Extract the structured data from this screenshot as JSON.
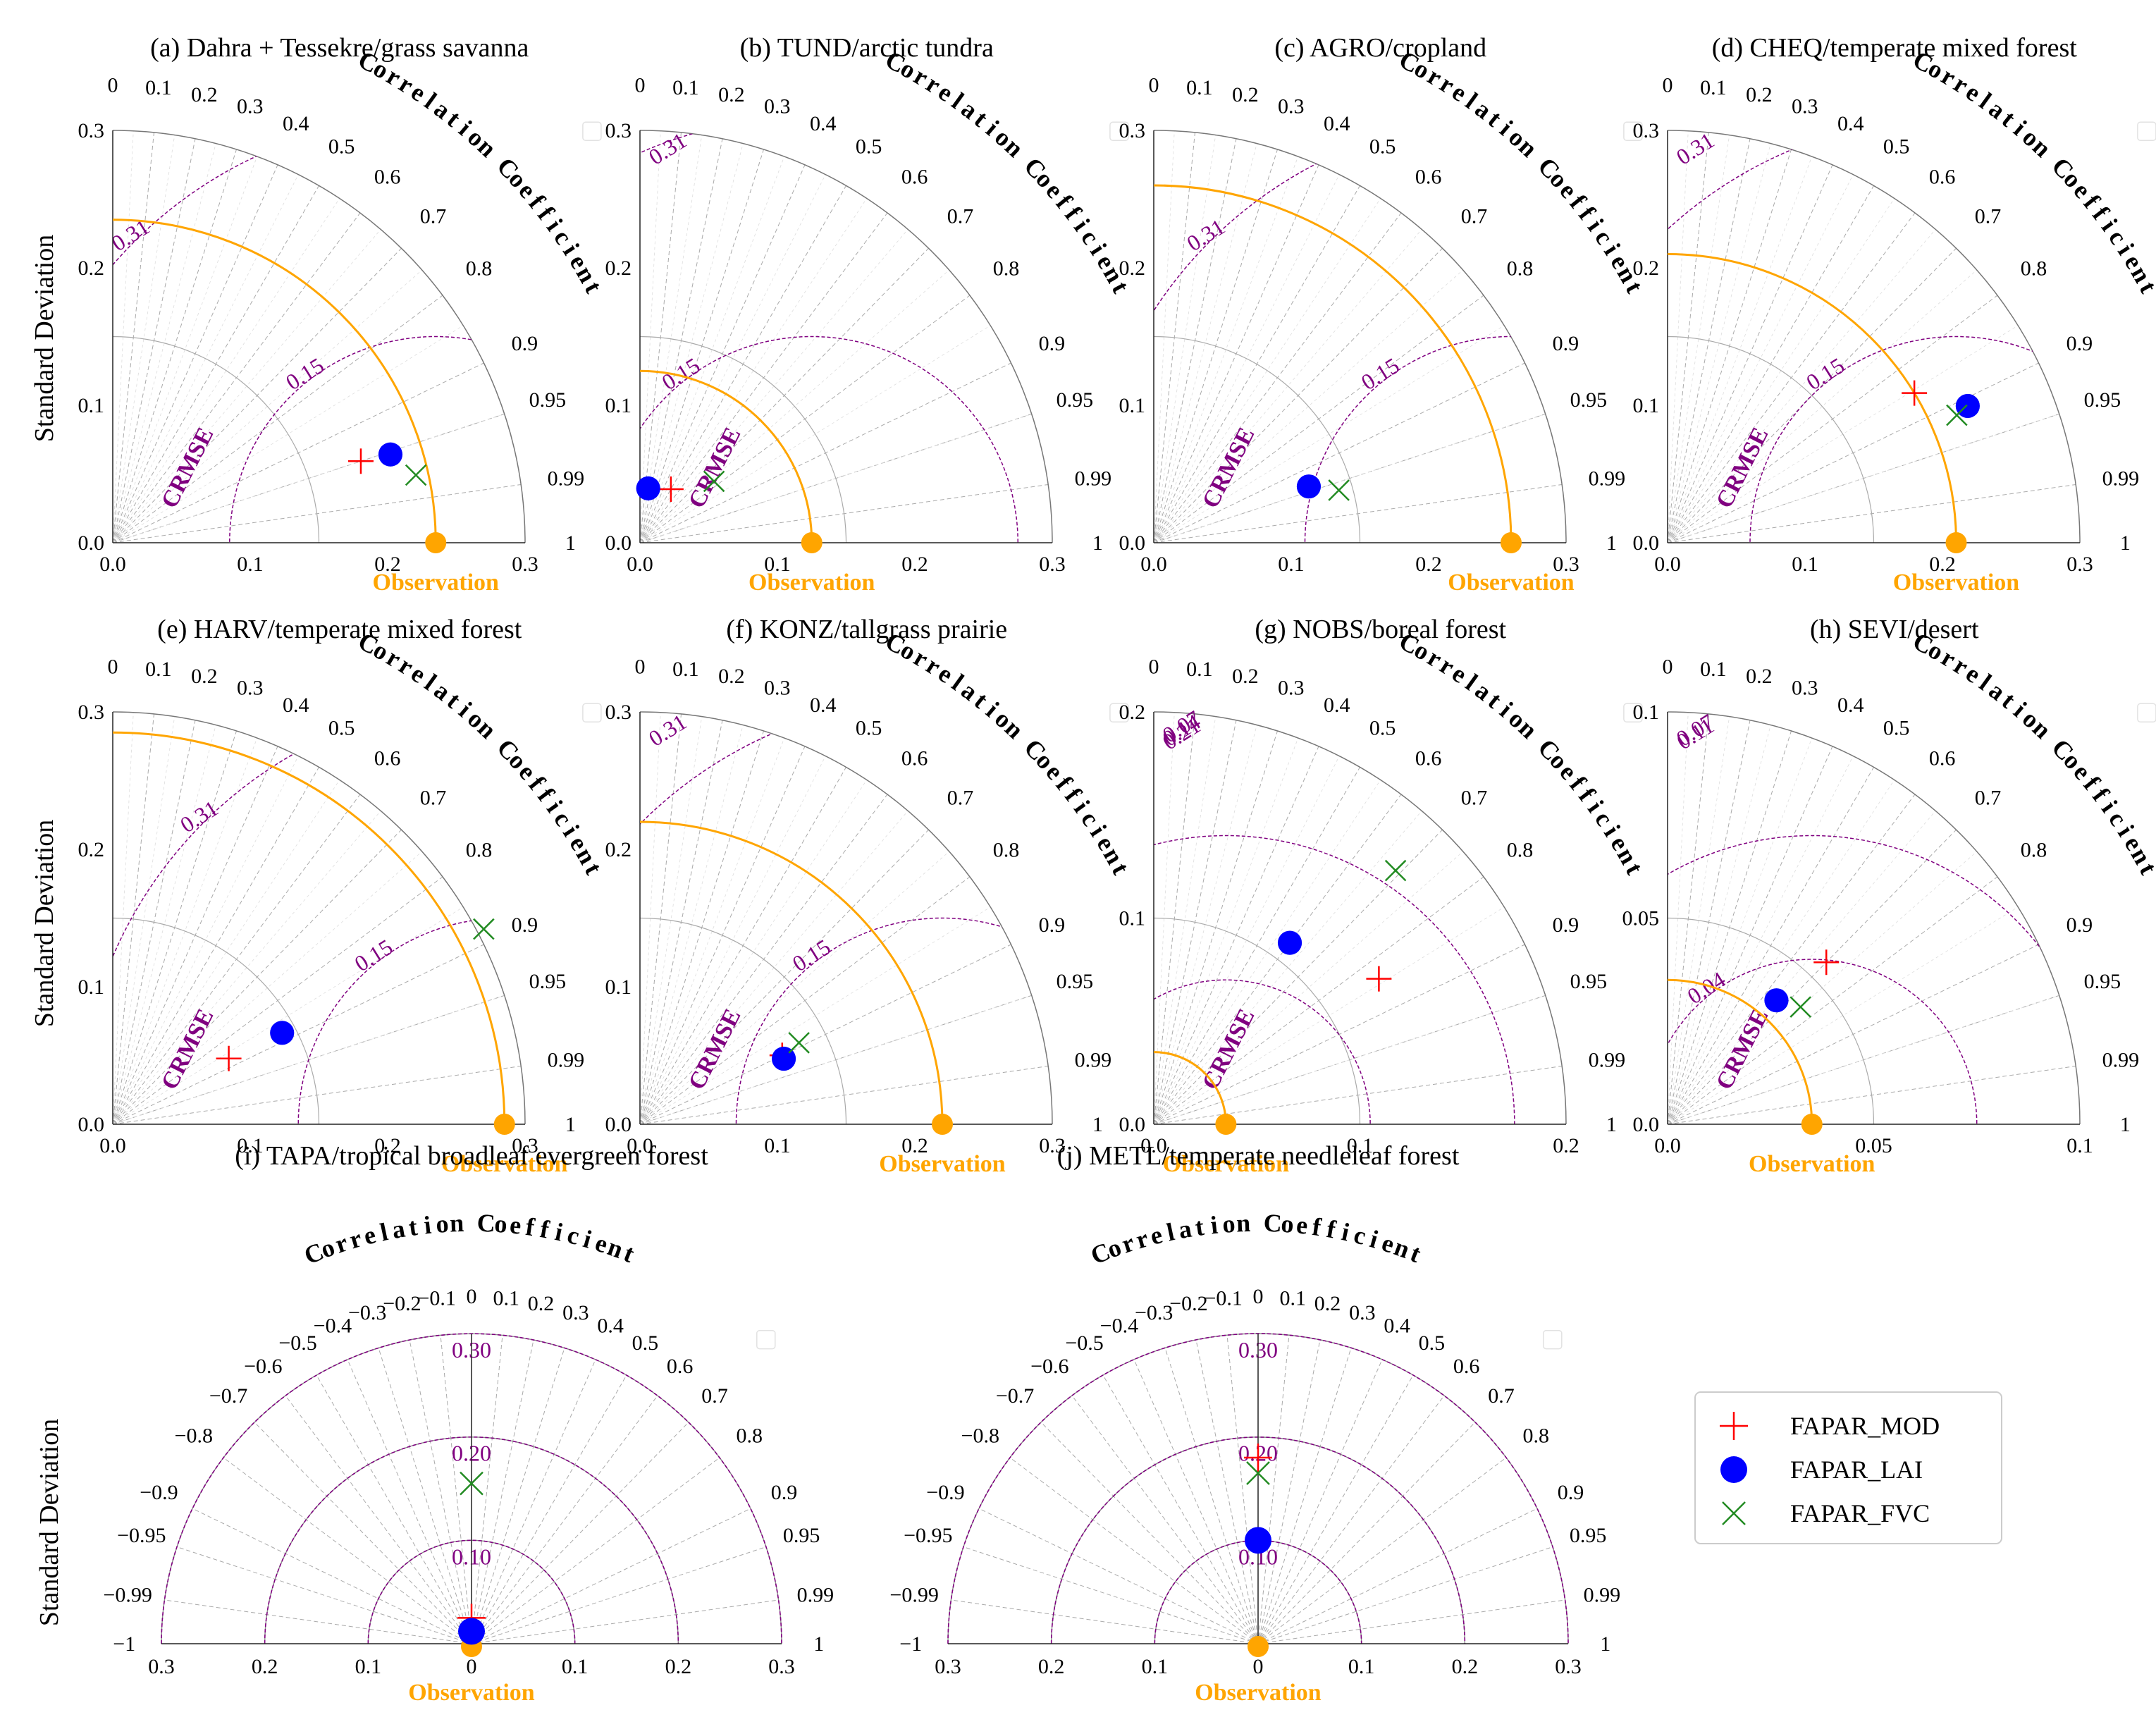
{
  "figure": {
    "ylabel": "Standard Deviation"
  },
  "colors": {
    "obs": "#FFA500",
    "crmse": "#800080",
    "mod": "#FF0000",
    "lai": "#0000FF",
    "fvc": "#228B22",
    "axis": "#555555",
    "grid": "#AAAAAA"
  },
  "legend": {
    "entries": [
      {
        "name": "FAPAR_MOD",
        "marker": "plus"
      },
      {
        "name": "FAPAR_LAI",
        "marker": "circle"
      },
      {
        "name": "FAPAR_FVC",
        "marker": "cross"
      }
    ]
  },
  "labels": {
    "observation": "Observation",
    "correlation": "Correlation Coefficient",
    "crmse": "CRMSE"
  },
  "chart_data": [
    {
      "type": "taylor",
      "title": "(a) Dahra + Tessekre/grass savanna",
      "smax": 0.3,
      "ticks": [
        "0.0",
        "0.1",
        "0.2",
        "0.3"
      ],
      "obs_std": 0.235,
      "std_arcs": [
        0.15,
        0.3
      ],
      "crmse_levels": [
        0.15,
        0.31
      ],
      "crmse_labels": [
        "0.15",
        "0.31"
      ],
      "corr_ticks": [
        "0",
        "0.1",
        "0.2",
        "0.3",
        "0.4",
        "0.5",
        "0.6",
        "0.7",
        "0.8",
        "0.9",
        "0.95",
        "0.99",
        "1"
      ],
      "points": [
        {
          "series": "FAPAR_MOD",
          "std": 0.19,
          "corr": 0.95
        },
        {
          "series": "FAPAR_LAI",
          "std": 0.212,
          "corr": 0.953
        },
        {
          "series": "FAPAR_FVC",
          "std": 0.226,
          "corr": 0.976
        }
      ]
    },
    {
      "type": "taylor",
      "title": "(b) TUND/arctic tundra",
      "smax": 0.3,
      "ticks": [
        "0.0",
        "0.1",
        "0.2",
        "0.3"
      ],
      "obs_std": 0.125,
      "std_arcs": [
        0.15,
        0.3
      ],
      "crmse_levels": [
        0.15,
        0.31
      ],
      "crmse_labels": [
        "0.15",
        "0.31"
      ],
      "corr_ticks": [
        "0",
        "0.1",
        "0.2",
        "0.3",
        "0.4",
        "0.5",
        "0.6",
        "0.7",
        "0.8",
        "0.9",
        "0.95",
        "0.99",
        "1"
      ],
      "points": [
        {
          "series": "FAPAR_MOD",
          "std": 0.045,
          "corr": 0.5
        },
        {
          "series": "FAPAR_LAI",
          "std": 0.04,
          "corr": 0.15
        },
        {
          "series": "FAPAR_FVC",
          "std": 0.07,
          "corr": 0.77
        }
      ]
    },
    {
      "type": "taylor",
      "title": "(c) AGRO/cropland",
      "smax": 0.3,
      "ticks": [
        "0.0",
        "0.1",
        "0.2",
        "0.3"
      ],
      "obs_std": 0.26,
      "std_arcs": [
        0.15,
        0.3
      ],
      "crmse_levels": [
        0.15,
        0.31
      ],
      "crmse_labels": [
        "0.15",
        "0.31"
      ],
      "corr_ticks": [
        "0",
        "0.1",
        "0.2",
        "0.3",
        "0.4",
        "0.5",
        "0.6",
        "0.7",
        "0.8",
        "0.9",
        "0.95",
        "0.99",
        "1"
      ],
      "points": [
        {
          "series": "FAPAR_LAI",
          "std": 0.12,
          "corr": 0.94
        },
        {
          "series": "FAPAR_FVC",
          "std": 0.14,
          "corr": 0.962
        }
      ]
    },
    {
      "type": "taylor",
      "title": "(d) CHEQ/temperate mixed forest",
      "smax": 0.3,
      "ticks": [
        "0.0",
        "0.1",
        "0.2",
        "0.3"
      ],
      "obs_std": 0.21,
      "std_arcs": [
        0.15,
        0.3
      ],
      "crmse_levels": [
        0.15,
        0.31
      ],
      "crmse_labels": [
        "0.15",
        "0.31"
      ],
      "corr_ticks": [
        "0",
        "0.1",
        "0.2",
        "0.3",
        "0.4",
        "0.5",
        "0.6",
        "0.7",
        "0.8",
        "0.9",
        "0.95",
        "0.99",
        "1"
      ],
      "points": [
        {
          "series": "FAPAR_MOD",
          "std": 0.21,
          "corr": 0.855
        },
        {
          "series": "FAPAR_LAI",
          "std": 0.24,
          "corr": 0.91
        },
        {
          "series": "FAPAR_FVC",
          "std": 0.23,
          "corr": 0.915
        }
      ]
    },
    {
      "type": "taylor",
      "title": "(e) HARV/temperate mixed forest",
      "smax": 0.3,
      "ticks": [
        "0.0",
        "0.1",
        "0.2",
        "0.3"
      ],
      "obs_std": 0.285,
      "std_arcs": [
        0.15,
        0.3
      ],
      "crmse_levels": [
        0.15,
        0.31
      ],
      "crmse_labels": [
        "0.15",
        "0.31"
      ],
      "corr_ticks": [
        "0",
        "0.1",
        "0.2",
        "0.3",
        "0.4",
        "0.5",
        "0.6",
        "0.7",
        "0.8",
        "0.9",
        "0.95",
        "0.99",
        "1"
      ],
      "points": [
        {
          "series": "FAPAR_MOD",
          "std": 0.097,
          "corr": 0.87
        },
        {
          "series": "FAPAR_LAI",
          "std": 0.14,
          "corr": 0.88
        },
        {
          "series": "FAPAR_FVC",
          "std": 0.305,
          "corr": 0.885
        }
      ]
    },
    {
      "type": "taylor",
      "title": "(f) KONZ/tallgrass prairie",
      "smax": 0.3,
      "ticks": [
        "0.0",
        "0.1",
        "0.2",
        "0.3"
      ],
      "obs_std": 0.22,
      "std_arcs": [
        0.15,
        0.3
      ],
      "crmse_levels": [
        0.15,
        0.31
      ],
      "crmse_labels": [
        "0.15",
        "0.31"
      ],
      "corr_ticks": [
        "0",
        "0.1",
        "0.2",
        "0.3",
        "0.4",
        "0.5",
        "0.6",
        "0.7",
        "0.8",
        "0.9",
        "0.95",
        "0.99",
        "1"
      ],
      "points": [
        {
          "series": "FAPAR_MOD",
          "std": 0.115,
          "corr": 0.9
        },
        {
          "series": "FAPAR_LAI",
          "std": 0.115,
          "corr": 0.91
        },
        {
          "series": "FAPAR_FVC",
          "std": 0.13,
          "corr": 0.89
        }
      ]
    },
    {
      "type": "taylor",
      "title": "(g) NOBS/boreal forest",
      "smax": 0.2,
      "ticks": [
        "0.0",
        "0.1",
        "0.2"
      ],
      "obs_std": 0.035,
      "std_arcs": [
        0.1,
        0.2
      ],
      "crmse_levels": [
        0.07,
        0.14,
        0.21
      ],
      "crmse_labels": [
        "0.07",
        "0.14",
        "0.21"
      ],
      "corr_ticks": [
        "0",
        "0.1",
        "0.2",
        "0.3",
        "0.4",
        "0.5",
        "0.6",
        "0.7",
        "0.8",
        "0.9",
        "0.95",
        "0.99",
        "1"
      ],
      "points": [
        {
          "series": "FAPAR_MOD",
          "std": 0.13,
          "corr": 0.84
        },
        {
          "series": "FAPAR_LAI",
          "std": 0.11,
          "corr": 0.6
        },
        {
          "series": "FAPAR_FVC",
          "std": 0.17,
          "corr": 0.69
        }
      ]
    },
    {
      "type": "taylor",
      "title": "(h) SEVI/desert",
      "smax": 0.1,
      "ticks": [
        "0.00",
        "0.05",
        "0.10"
      ],
      "tick_labels": [
        "0.0",
        "0.05",
        "0.1"
      ],
      "obs_std": 0.035,
      "std_arcs": [
        0.05,
        0.1
      ],
      "crmse_levels": [
        0.04,
        0.07,
        0.11
      ],
      "crmse_labels": [
        "0.04",
        "0.07",
        "0.11"
      ],
      "corr_ticks": [
        "0",
        "0.1",
        "0.2",
        "0.3",
        "0.4",
        "0.5",
        "0.6",
        "0.7",
        "0.8",
        "0.9",
        "0.95",
        "0.99",
        "1"
      ],
      "points": [
        {
          "series": "FAPAR_MOD",
          "std": 0.055,
          "corr": 0.7
        },
        {
          "series": "FAPAR_LAI",
          "std": 0.04,
          "corr": 0.66
        },
        {
          "series": "FAPAR_FVC",
          "std": 0.043,
          "corr": 0.75
        }
      ]
    },
    {
      "type": "taylor_full",
      "title": "(i) TAPA/tropical broadleaf evergreen forest",
      "smax": 0.3,
      "ticks": [
        "0.3",
        "0.2",
        "0.1",
        "0",
        "0.1",
        "0.2",
        "0.3"
      ],
      "obs_std": 0.003,
      "std_arcs": [
        0.1,
        0.2,
        0.3
      ],
      "crmse_levels": [
        0.1,
        0.2,
        0.3
      ],
      "crmse_labels": [
        "0.10",
        "0.20",
        "0.30"
      ],
      "corr_ticks": [
        "−1",
        "−0.99",
        "−0.95",
        "−0.9",
        "−0.8",
        "−0.7",
        "−0.6",
        "−0.5",
        "−0.4",
        "−0.3",
        "−0.2",
        "−0.1",
        "0",
        "0.1",
        "0.2",
        "0.3",
        "0.4",
        "0.5",
        "0.6",
        "0.7",
        "0.8",
        "0.9",
        "0.95",
        "0.99",
        "1"
      ],
      "points": [
        {
          "series": "FAPAR_MOD",
          "std": 0.025,
          "corr": 0.0
        },
        {
          "series": "FAPAR_LAI",
          "std": 0.012,
          "corr": 0.0
        },
        {
          "series": "FAPAR_FVC",
          "std": 0.155,
          "corr": 0.0
        }
      ]
    },
    {
      "type": "taylor_full",
      "title": "(j) METL/temperate needleleaf forest",
      "smax": 0.3,
      "ticks": [
        "0.3",
        "0.2",
        "0.1",
        "0",
        "0.1",
        "0.2",
        "0.3"
      ],
      "obs_std": 0.003,
      "std_arcs": [
        0.1,
        0.2,
        0.3
      ],
      "crmse_levels": [
        0.1,
        0.2,
        0.3
      ],
      "crmse_labels": [
        "0.10",
        "0.20",
        "0.30"
      ],
      "corr_ticks": [
        "−1",
        "−0.99",
        "−0.95",
        "−0.9",
        "−0.8",
        "−0.7",
        "−0.6",
        "−0.5",
        "−0.4",
        "−0.3",
        "−0.2",
        "−0.1",
        "0",
        "0.1",
        "0.2",
        "0.3",
        "0.4",
        "0.5",
        "0.6",
        "0.7",
        "0.8",
        "0.9",
        "0.95",
        "0.99",
        "1"
      ],
      "points": [
        {
          "series": "FAPAR_MOD",
          "std": 0.18,
          "corr": 0.0
        },
        {
          "series": "FAPAR_LAI",
          "std": 0.1,
          "corr": 0.0
        },
        {
          "series": "FAPAR_FVC",
          "std": 0.165,
          "corr": 0.0
        }
      ]
    }
  ]
}
